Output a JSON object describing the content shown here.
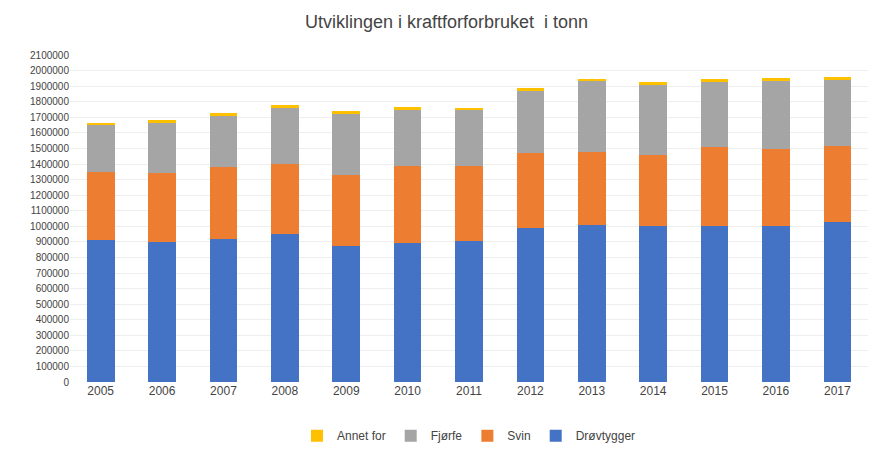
{
  "chart_data": {
    "type": "bar",
    "title": "Utviklingen i kraftforforbruket  i tonn",
    "categories": [
      "2005",
      "2006",
      "2007",
      "2008",
      "2009",
      "2010",
      "2011",
      "2012",
      "2013",
      "2014",
      "2015",
      "2016",
      "2017"
    ],
    "series": [
      {
        "name": "Drøvtygger",
        "color": "#4472C4",
        "values": [
          910000,
          900000,
          920000,
          950000,
          875000,
          895000,
          905000,
          990000,
          1010000,
          1000000,
          1005000,
          1005000,
          1030000
        ]
      },
      {
        "name": "Svin",
        "color": "#ED7D31",
        "values": [
          440000,
          440000,
          460000,
          450000,
          455000,
          490000,
          480000,
          480000,
          465000,
          460000,
          505000,
          490000,
          485000
        ]
      },
      {
        "name": "Fjørfe",
        "color": "#A5A5A5",
        "values": [
          300000,
          325000,
          330000,
          360000,
          390000,
          365000,
          360000,
          400000,
          455000,
          450000,
          415000,
          440000,
          425000
        ]
      },
      {
        "name": "Annet for",
        "color": "#FFC000",
        "values": [
          15000,
          20000,
          15000,
          18000,
          18000,
          15000,
          15000,
          15000,
          18000,
          15000,
          18000,
          15000,
          18000
        ]
      }
    ],
    "stacked": true,
    "ylim": [
      0,
      2100000
    ],
    "yticks": [
      0,
      100000,
      200000,
      300000,
      400000,
      500000,
      600000,
      700000,
      800000,
      900000,
      1000000,
      1100000,
      1200000,
      1300000,
      1400000,
      1500000,
      1600000,
      1700000,
      1800000,
      1900000,
      2000000,
      2100000
    ],
    "grid": true,
    "legend": "bottom"
  }
}
